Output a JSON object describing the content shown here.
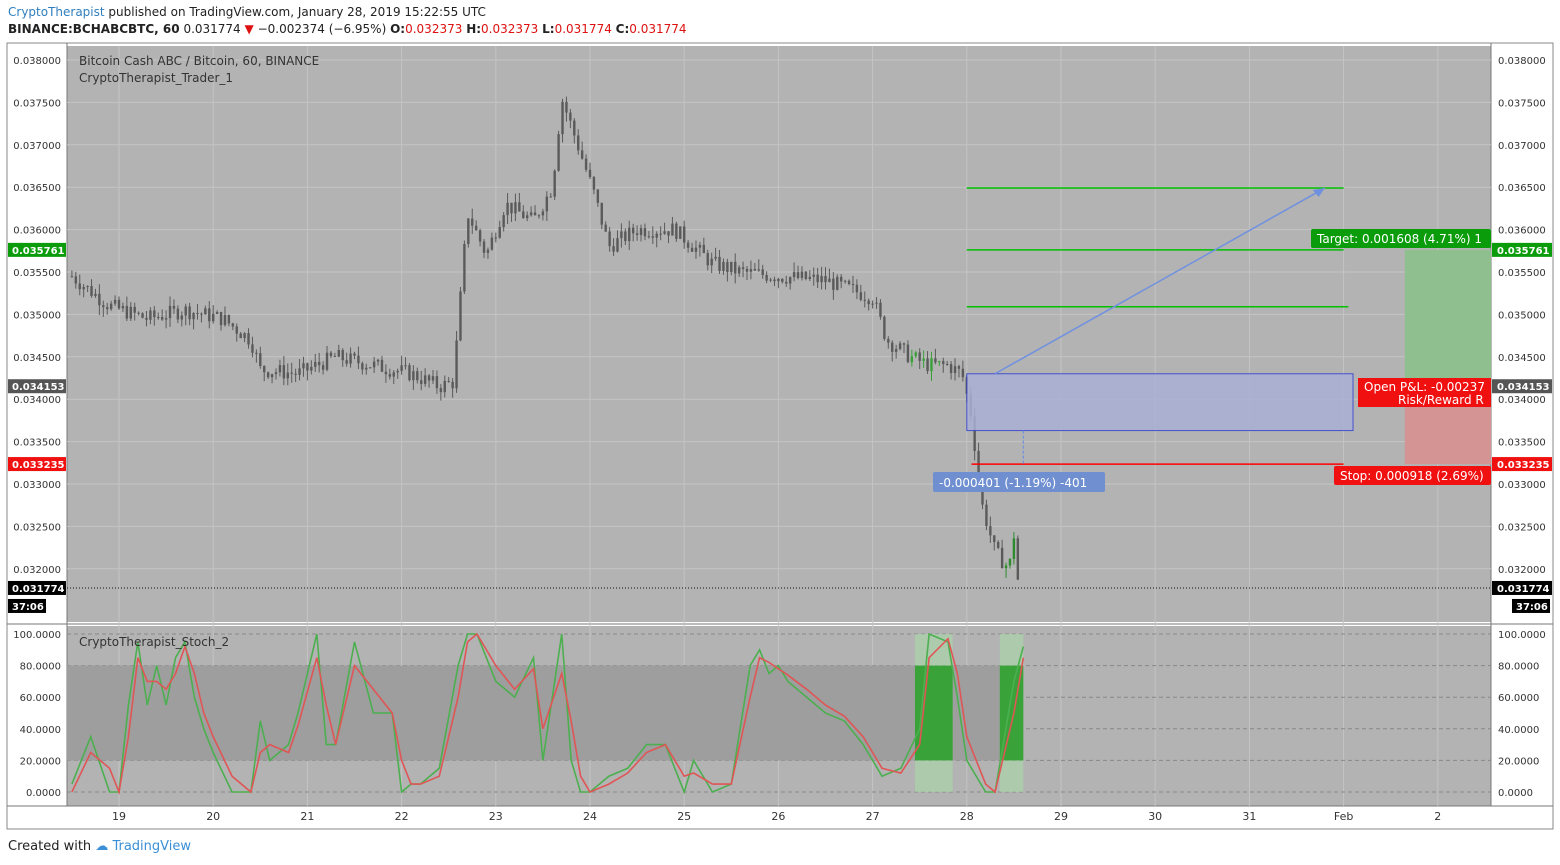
{
  "header": {
    "author": "CryptoTherapist",
    "published": "published on TradingView.com, January 28, 2019 15:22:55 UTC",
    "symbol": "BINANCE:BCHABCBTC, 60",
    "last": "0.031774",
    "change": "−0.002374 (−6.95%)",
    "o_label": "O:",
    "o_val": "0.032373",
    "h_label": "H:",
    "h_val": "0.032373",
    "l_label": "L:",
    "l_val": "0.031774",
    "c_label": "C:",
    "c_val": "0.031774"
  },
  "footer": {
    "created": "Created with",
    "brand": "TradingView"
  },
  "colors": {
    "panel_bg": "#b3b3b3",
    "candle": "#5a5a5a",
    "green": "#00c000",
    "red": "#ff0000",
    "stoch_k": "#4caf50",
    "stoch_d": "#e05555",
    "zone_fill": "#9e9e9e",
    "arrow": "#7090e0"
  },
  "chart_data": [
    {
      "type": "candlestick",
      "title": "Bitcoin Cash ABC / Bitcoin, 60, BINANCE",
      "indicator_label": "CryptoTherapist_Trader_1",
      "x_ticks": [
        "19",
        "20",
        "21",
        "22",
        "23",
        "24",
        "25",
        "26",
        "27",
        "28",
        "29",
        "30",
        "31",
        "Feb",
        "2"
      ],
      "y_ticks": [
        "0.038000",
        "0.037500",
        "0.037000",
        "0.036500",
        "0.036000",
        "0.035500",
        "0.035000",
        "0.034500",
        "0.034000",
        "0.033500",
        "0.033000",
        "0.032500",
        "0.032000"
      ],
      "ylim": [
        0.0312,
        0.0382
      ],
      "price_path": [
        [
          18.5,
          0.03545
        ],
        [
          18.9,
          0.0351
        ],
        [
          19.3,
          0.03495
        ],
        [
          19.7,
          0.03505
        ],
        [
          20.1,
          0.03495
        ],
        [
          20.4,
          0.0347
        ],
        [
          20.5,
          0.03435
        ],
        [
          20.9,
          0.0343
        ],
        [
          21.3,
          0.0345
        ],
        [
          21.7,
          0.0344
        ],
        [
          22.1,
          0.0343
        ],
        [
          22.4,
          0.03415
        ],
        [
          22.55,
          0.0342
        ],
        [
          22.7,
          0.0362
        ],
        [
          22.9,
          0.0357
        ],
        [
          23.1,
          0.0363
        ],
        [
          23.4,
          0.0361
        ],
        [
          23.6,
          0.0365
        ],
        [
          23.7,
          0.03755
        ],
        [
          23.9,
          0.0369
        ],
        [
          24.05,
          0.0364
        ],
        [
          24.2,
          0.0358
        ],
        [
          24.5,
          0.036
        ],
        [
          24.9,
          0.036
        ],
        [
          25.3,
          0.0356
        ],
        [
          25.6,
          0.0355
        ],
        [
          26.0,
          0.03545
        ],
        [
          26.5,
          0.0354
        ],
        [
          27.0,
          0.0352
        ],
        [
          27.15,
          0.0347
        ],
        [
          27.4,
          0.0345
        ],
        [
          27.6,
          0.0344
        ],
        [
          27.8,
          0.0344
        ],
        [
          27.95,
          0.0343
        ],
        [
          28.05,
          0.0338
        ],
        [
          28.15,
          0.0328
        ],
        [
          28.3,
          0.0322
        ],
        [
          28.45,
          0.032
        ],
        [
          28.5,
          0.0324
        ],
        [
          28.55,
          0.03177
        ]
      ],
      "last_price": "0.031774",
      "countdown": "37:06",
      "price_tags": {
        "target_line": "0.035761",
        "entry": "0.034153",
        "stop_line": "0.033235"
      },
      "trade": {
        "target_label": "Target: 0.001608 (4.71%)",
        "target_label_suffix": "1",
        "stop_label": "Stop: 0.000918 (2.69%)",
        "pnl_label": "Open P&L: -0.00237",
        "rr_label": "Risk/Reward R",
        "measure_label": "-0.000401 (-1.19%) -401",
        "target_price": 0.035761,
        "entry_price": 0.034153,
        "stop_price": 0.033235
      },
      "levels": [
        {
          "price": 0.03649,
          "from": 28.0,
          "to": 32.0,
          "color": "#00c000"
        },
        {
          "price": 0.035761,
          "from": 28.0,
          "to": 32.0,
          "color": "#00c000"
        },
        {
          "price": 0.03509,
          "from": 28.0,
          "to": 32.05,
          "color": "#00c000"
        }
      ],
      "zone": {
        "from": 28.0,
        "to": 32.1,
        "low": 0.03363,
        "high": 0.0343
      }
    },
    {
      "type": "line",
      "title": "CryptoTherapist_Stoch_2",
      "y_ticks": [
        "100.0000",
        "80.0000",
        "60.0000",
        "40.0000",
        "20.0000",
        "0.0000"
      ],
      "ylim": [
        0,
        100
      ],
      "band": [
        20,
        80
      ],
      "series": [
        {
          "role": "k",
          "x": [
            18.5,
            18.7,
            18.9,
            19.0,
            19.1,
            19.2,
            19.3,
            19.4,
            19.5,
            19.6,
            19.7,
            19.8,
            19.9,
            20.0,
            20.2,
            20.4,
            20.5,
            20.6,
            20.8,
            20.9,
            21.1,
            21.2,
            21.3,
            21.5,
            21.7,
            21.9,
            22.0,
            22.1,
            22.2,
            22.4,
            22.6,
            22.7,
            22.8,
            23.0,
            23.2,
            23.4,
            23.5,
            23.7,
            23.8,
            23.9,
            24.0,
            24.2,
            24.4,
            24.6,
            24.8,
            25.0,
            25.1,
            25.3,
            25.5,
            25.7,
            25.8,
            25.9,
            26.0,
            26.1,
            26.3,
            26.5,
            26.7,
            26.9,
            27.0,
            27.1,
            27.3,
            27.5,
            27.6,
            27.8,
            27.9,
            28.0,
            28.2,
            28.3,
            28.5,
            28.6
          ],
          "values": [
            5,
            35,
            0,
            0,
            55,
            95,
            55,
            80,
            55,
            85,
            95,
            60,
            40,
            25,
            0,
            0,
            45,
            20,
            30,
            50,
            100,
            30,
            30,
            95,
            50,
            50,
            0,
            5,
            5,
            15,
            80,
            100,
            100,
            70,
            60,
            85,
            20,
            100,
            20,
            0,
            0,
            10,
            15,
            30,
            30,
            0,
            20,
            0,
            5,
            80,
            90,
            75,
            80,
            70,
            60,
            50,
            45,
            30,
            20,
            10,
            15,
            40,
            100,
            95,
            60,
            20,
            0,
            0,
            70,
            92
          ]
        },
        {
          "role": "d",
          "x": [
            18.5,
            18.7,
            18.9,
            19.0,
            19.1,
            19.2,
            19.3,
            19.4,
            19.5,
            19.6,
            19.7,
            19.8,
            19.9,
            20.0,
            20.2,
            20.4,
            20.5,
            20.6,
            20.8,
            20.9,
            21.1,
            21.2,
            21.3,
            21.5,
            21.7,
            21.9,
            22.0,
            22.1,
            22.2,
            22.4,
            22.6,
            22.7,
            22.8,
            23.0,
            23.2,
            23.4,
            23.5,
            23.7,
            23.8,
            23.9,
            24.0,
            24.2,
            24.4,
            24.6,
            24.8,
            25.0,
            25.1,
            25.3,
            25.5,
            25.7,
            25.8,
            25.9,
            26.0,
            26.1,
            26.3,
            26.5,
            26.7,
            26.9,
            27.0,
            27.1,
            27.3,
            27.5,
            27.6,
            27.8,
            27.9,
            28.0,
            28.2,
            28.3,
            28.5,
            28.6
          ],
          "values": [
            0,
            25,
            15,
            0,
            35,
            85,
            70,
            70,
            65,
            75,
            92,
            75,
            50,
            35,
            10,
            0,
            25,
            30,
            25,
            42,
            85,
            55,
            30,
            80,
            65,
            50,
            20,
            5,
            5,
            10,
            60,
            95,
            100,
            80,
            65,
            78,
            40,
            75,
            45,
            10,
            0,
            5,
            12,
            25,
            30,
            10,
            12,
            5,
            5,
            60,
            85,
            82,
            78,
            74,
            65,
            55,
            48,
            35,
            25,
            15,
            12,
            30,
            85,
            97,
            75,
            35,
            5,
            0,
            50,
            85
          ]
        }
      ],
      "highlight_spans": [
        [
          27.45,
          27.85
        ],
        [
          28.35,
          28.6
        ]
      ]
    }
  ]
}
